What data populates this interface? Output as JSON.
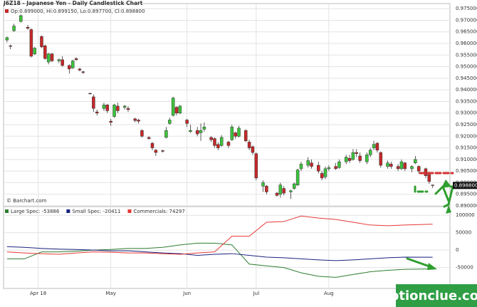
{
  "chart_data": [
    {
      "type": "candlestick",
      "title": "J6Z18 - Japanese Yen - Daily Candlestick Chart",
      "subtitle": "Op:0.899000, Hi:0.899150, Lo:0.897700, Cl:0.898800",
      "source": "© Barchart.com",
      "last_label": "0.898800",
      "up_color": "#3cc43c",
      "down_color": "#c62828",
      "xlim": [
        -1,
        128
      ],
      "ylim": [
        0.89,
        0.9772
      ],
      "yticks": [
        {
          "value": 0.975,
          "label": "0.975000"
        },
        {
          "value": 0.97,
          "label": "0.970000"
        },
        {
          "value": 0.965,
          "label": "0.965000"
        },
        {
          "value": 0.96,
          "label": "0.960000"
        },
        {
          "value": 0.955,
          "label": "0.955000"
        },
        {
          "value": 0.95,
          "label": "0.950000"
        },
        {
          "value": 0.945,
          "label": "0.945000"
        },
        {
          "value": 0.94,
          "label": "0.940000"
        },
        {
          "value": 0.935,
          "label": "0.935000"
        },
        {
          "value": 0.93,
          "label": "0.930000"
        },
        {
          "value": 0.925,
          "label": "0.925000"
        },
        {
          "value": 0.92,
          "label": "0.920000"
        },
        {
          "value": 0.915,
          "label": "0.915000"
        },
        {
          "value": 0.91,
          "label": "0.910000"
        },
        {
          "value": 0.905,
          "label": "0.905000"
        },
        {
          "value": 0.9,
          "label": "0.900000"
        },
        {
          "value": 0.895,
          "label": "0.895000"
        },
        {
          "value": 0.89,
          "label": "0.890000"
        }
      ],
      "grid": true,
      "candles": [
        {
          "x": 0,
          "open": 0.9615,
          "high": 0.963,
          "low": 0.9605,
          "close": 0.9625
        },
        {
          "x": 1,
          "open": 0.959,
          "high": 0.9595,
          "low": 0.9575,
          "close": 0.9588
        },
        {
          "x": 2,
          "open": 0.9655,
          "high": 0.9685,
          "low": 0.965,
          "close": 0.9675
        },
        {
          "x": 4,
          "open": 0.9695,
          "high": 0.9725,
          "low": 0.969,
          "close": 0.972
        },
        {
          "x": 6,
          "open": 0.967,
          "high": 0.968,
          "low": 0.966,
          "close": 0.9665
        },
        {
          "x": 7,
          "open": 0.966,
          "high": 0.9665,
          "low": 0.954,
          "close": 0.9545
        },
        {
          "x": 8,
          "open": 0.9555,
          "high": 0.9585,
          "low": 0.955,
          "close": 0.958
        },
        {
          "x": 10,
          "open": 0.963,
          "high": 0.9635,
          "low": 0.958,
          "close": 0.9585
        },
        {
          "x": 11,
          "open": 0.959,
          "high": 0.9595,
          "low": 0.953,
          "close": 0.9535
        },
        {
          "x": 12,
          "open": 0.952,
          "high": 0.956,
          "low": 0.951,
          "close": 0.9555
        },
        {
          "x": 13,
          "open": 0.9555,
          "high": 0.956,
          "low": 0.952,
          "close": 0.9525
        },
        {
          "x": 15,
          "open": 0.9525,
          "high": 0.9535,
          "low": 0.9515,
          "close": 0.953
        },
        {
          "x": 16,
          "open": 0.953,
          "high": 0.9545,
          "low": 0.95,
          "close": 0.9505
        },
        {
          "x": 18,
          "open": 0.9505,
          "high": 0.951,
          "low": 0.947,
          "close": 0.949
        },
        {
          "x": 19,
          "open": 0.9495,
          "high": 0.953,
          "low": 0.949,
          "close": 0.9525
        },
        {
          "x": 20,
          "open": 0.9535,
          "high": 0.954,
          "low": 0.9525,
          "close": 0.953
        },
        {
          "x": 21,
          "open": 0.949,
          "high": 0.9495,
          "low": 0.948,
          "close": 0.9485
        },
        {
          "x": 22,
          "open": 0.9478,
          "high": 0.9482,
          "low": 0.9468,
          "close": 0.9475
        },
        {
          "x": 24,
          "open": 0.9385,
          "high": 0.9388,
          "low": 0.938,
          "close": 0.9383
        },
        {
          "x": 25,
          "open": 0.937,
          "high": 0.938,
          "low": 0.9305,
          "close": 0.932
        },
        {
          "x": 26,
          "open": 0.9305,
          "high": 0.9315,
          "low": 0.929,
          "close": 0.93
        },
        {
          "x": 28,
          "open": 0.932,
          "high": 0.9345,
          "low": 0.931,
          "close": 0.9335
        },
        {
          "x": 29,
          "open": 0.9335,
          "high": 0.934,
          "low": 0.93,
          "close": 0.931
        },
        {
          "x": 30,
          "open": 0.9265,
          "high": 0.9275,
          "low": 0.9245,
          "close": 0.926
        },
        {
          "x": 31,
          "open": 0.9285,
          "high": 0.934,
          "low": 0.928,
          "close": 0.9335
        },
        {
          "x": 32,
          "open": 0.933,
          "high": 0.9345,
          "low": 0.93,
          "close": 0.931
        },
        {
          "x": 34,
          "open": 0.9325,
          "high": 0.9335,
          "low": 0.9315,
          "close": 0.933
        },
        {
          "x": 35,
          "open": 0.932,
          "high": 0.933,
          "low": 0.9305,
          "close": 0.9315
        },
        {
          "x": 37,
          "open": 0.9275,
          "high": 0.928,
          "low": 0.926,
          "close": 0.9268
        },
        {
          "x": 38,
          "open": 0.927,
          "high": 0.9275,
          "low": 0.9255,
          "close": 0.9265
        },
        {
          "x": 39,
          "open": 0.9225,
          "high": 0.923,
          "low": 0.9195,
          "close": 0.92
        },
        {
          "x": 41,
          "open": 0.9195,
          "high": 0.92,
          "low": 0.9185,
          "close": 0.919
        },
        {
          "x": 42,
          "open": 0.917,
          "high": 0.9175,
          "low": 0.914,
          "close": 0.915
        },
        {
          "x": 43,
          "open": 0.914,
          "high": 0.9145,
          "low": 0.9115,
          "close": 0.913
        },
        {
          "x": 45,
          "open": 0.9138,
          "high": 0.9142,
          "low": 0.913,
          "close": 0.9135
        },
        {
          "x": 46,
          "open": 0.9195,
          "high": 0.924,
          "low": 0.919,
          "close": 0.9225
        },
        {
          "x": 47,
          "open": 0.9255,
          "high": 0.928,
          "low": 0.925,
          "close": 0.927
        },
        {
          "x": 48,
          "open": 0.929,
          "high": 0.937,
          "low": 0.9285,
          "close": 0.9365
        },
        {
          "x": 49,
          "open": 0.9325,
          "high": 0.933,
          "low": 0.929,
          "close": 0.93
        },
        {
          "x": 50,
          "open": 0.93,
          "high": 0.9335,
          "low": 0.9295,
          "close": 0.933
        },
        {
          "x": 52,
          "open": 0.927,
          "high": 0.9275,
          "low": 0.924,
          "close": 0.9255
        },
        {
          "x": 53,
          "open": 0.922,
          "high": 0.925,
          "low": 0.9215,
          "close": 0.9225
        },
        {
          "x": 55,
          "open": 0.9225,
          "high": 0.924,
          "low": 0.92,
          "close": 0.921
        },
        {
          "x": 56,
          "open": 0.9215,
          "high": 0.9255,
          "low": 0.918,
          "close": 0.9225
        },
        {
          "x": 57,
          "open": 0.923,
          "high": 0.926,
          "low": 0.922,
          "close": 0.924
        },
        {
          "x": 59,
          "open": 0.9195,
          "high": 0.92,
          "low": 0.9175,
          "close": 0.9185
        },
        {
          "x": 60,
          "open": 0.919,
          "high": 0.9195,
          "low": 0.915,
          "close": 0.916
        },
        {
          "x": 61,
          "open": 0.9165,
          "high": 0.9175,
          "low": 0.914,
          "close": 0.915
        },
        {
          "x": 62,
          "open": 0.916,
          "high": 0.9205,
          "low": 0.9155,
          "close": 0.9195
        },
        {
          "x": 64,
          "open": 0.9175,
          "high": 0.918,
          "low": 0.915,
          "close": 0.916
        },
        {
          "x": 65,
          "open": 0.9185,
          "high": 0.925,
          "low": 0.918,
          "close": 0.924
        },
        {
          "x": 66,
          "open": 0.9215,
          "high": 0.922,
          "low": 0.919,
          "close": 0.92
        },
        {
          "x": 67,
          "open": 0.92,
          "high": 0.9245,
          "low": 0.9195,
          "close": 0.9235
        },
        {
          "x": 69,
          "open": 0.9225,
          "high": 0.923,
          "low": 0.9175,
          "close": 0.918
        },
        {
          "x": 70,
          "open": 0.9175,
          "high": 0.9185,
          "low": 0.914,
          "close": 0.915
        },
        {
          "x": 71,
          "open": 0.9155,
          "high": 0.916,
          "low": 0.912,
          "close": 0.913
        },
        {
          "x": 72,
          "open": 0.9125,
          "high": 0.913,
          "low": 0.901,
          "close": 0.902
        },
        {
          "x": 74,
          "open": 0.8985,
          "high": 0.901,
          "low": 0.896,
          "close": 0.9
        },
        {
          "x": 75,
          "open": 0.8985,
          "high": 0.899,
          "low": 0.895,
          "close": 0.896
        },
        {
          "x": 78,
          "open": 0.8955,
          "high": 0.896,
          "low": 0.894,
          "close": 0.8945
        },
        {
          "x": 79,
          "open": 0.895,
          "high": 0.9,
          "low": 0.8935,
          "close": 0.899
        },
        {
          "x": 80,
          "open": 0.8975,
          "high": 0.8985,
          "low": 0.8945,
          "close": 0.8955
        },
        {
          "x": 82,
          "open": 0.896,
          "high": 0.897,
          "low": 0.893,
          "close": 0.8965
        },
        {
          "x": 83,
          "open": 0.8975,
          "high": 0.9,
          "low": 0.897,
          "close": 0.8995
        },
        {
          "x": 84,
          "open": 0.899,
          "high": 0.906,
          "low": 0.8985,
          "close": 0.9055
        },
        {
          "x": 85,
          "open": 0.906,
          "high": 0.909,
          "low": 0.905,
          "close": 0.908
        },
        {
          "x": 87,
          "open": 0.9075,
          "high": 0.911,
          "low": 0.9065,
          "close": 0.9095
        },
        {
          "x": 88,
          "open": 0.9085,
          "high": 0.91,
          "low": 0.906,
          "close": 0.907
        },
        {
          "x": 90,
          "open": 0.9075,
          "high": 0.909,
          "low": 0.904,
          "close": 0.905
        },
        {
          "x": 91,
          "open": 0.904,
          "high": 0.905,
          "low": 0.901,
          "close": 0.902
        },
        {
          "x": 92,
          "open": 0.9025,
          "high": 0.907,
          "low": 0.9015,
          "close": 0.906
        },
        {
          "x": 93,
          "open": 0.906,
          "high": 0.9075,
          "low": 0.905,
          "close": 0.9065
        },
        {
          "x": 95,
          "open": 0.907,
          "high": 0.9085,
          "low": 0.9055,
          "close": 0.906
        },
        {
          "x": 96,
          "open": 0.9065,
          "high": 0.91,
          "low": 0.906,
          "close": 0.909
        },
        {
          "x": 98,
          "open": 0.909,
          "high": 0.912,
          "low": 0.908,
          "close": 0.911
        },
        {
          "x": 99,
          "open": 0.9105,
          "high": 0.912,
          "low": 0.9085,
          "close": 0.9095
        },
        {
          "x": 100,
          "open": 0.91,
          "high": 0.9145,
          "low": 0.9095,
          "close": 0.913
        },
        {
          "x": 101,
          "open": 0.913,
          "high": 0.9145,
          "low": 0.911,
          "close": 0.9125
        },
        {
          "x": 102,
          "open": 0.9115,
          "high": 0.913,
          "low": 0.9085,
          "close": 0.9095
        },
        {
          "x": 104,
          "open": 0.909,
          "high": 0.913,
          "low": 0.908,
          "close": 0.912
        },
        {
          "x": 105,
          "open": 0.912,
          "high": 0.915,
          "low": 0.911,
          "close": 0.914
        },
        {
          "x": 106,
          "open": 0.915,
          "high": 0.918,
          "low": 0.914,
          "close": 0.9165
        },
        {
          "x": 107,
          "open": 0.917,
          "high": 0.9175,
          "low": 0.913,
          "close": 0.914
        },
        {
          "x": 108,
          "open": 0.913,
          "high": 0.9135,
          "low": 0.9065,
          "close": 0.9075
        },
        {
          "x": 110,
          "open": 0.907,
          "high": 0.9095,
          "low": 0.906,
          "close": 0.9085
        },
        {
          "x": 111,
          "open": 0.908,
          "high": 0.909,
          "low": 0.906,
          "close": 0.907
        },
        {
          "x": 113,
          "open": 0.907,
          "high": 0.908,
          "low": 0.905,
          "close": 0.906
        },
        {
          "x": 114,
          "open": 0.906,
          "high": 0.91,
          "low": 0.9055,
          "close": 0.909
        },
        {
          "x": 115,
          "open": 0.9085,
          "high": 0.909,
          "low": 0.905,
          "close": 0.906
        },
        {
          "x": 117,
          "open": 0.906,
          "high": 0.9075,
          "low": 0.9045,
          "close": 0.907
        },
        {
          "x": 118,
          "open": 0.9085,
          "high": 0.9115,
          "low": 0.908,
          "close": 0.91
        },
        {
          "x": 119,
          "open": 0.907,
          "high": 0.9075,
          "low": 0.904,
          "close": 0.905
        },
        {
          "x": 121,
          "open": 0.906,
          "high": 0.9065,
          "low": 0.902,
          "close": 0.903
        },
        {
          "x": 122,
          "open": 0.9035,
          "high": 0.9045,
          "low": 0.8995,
          "close": 0.9005
        },
        {
          "x": 123,
          "open": 0.899,
          "high": 0.89915,
          "low": 0.8977,
          "close": 0.8988
        }
      ]
    },
    {
      "type": "line",
      "xlim": [
        -1,
        128
      ],
      "xticks": [
        {
          "value": 9,
          "label": "Apr 18"
        },
        {
          "value": 30,
          "label": "May"
        },
        {
          "value": 52,
          "label": "Jun"
        },
        {
          "value": 72,
          "label": "Jul"
        },
        {
          "value": 93,
          "label": "Aug"
        }
      ],
      "ylim": [
        -110000,
        125000
      ],
      "yticks": [
        100000,
        50000,
        0,
        -50000
      ],
      "grid": true,
      "x": [
        0,
        5,
        10,
        15,
        20,
        25,
        30,
        35,
        40,
        45,
        50,
        55,
        60,
        65,
        70,
        75,
        80,
        85,
        90,
        95,
        100,
        105,
        110,
        115,
        123
      ],
      "series": [
        {
          "name": "Large Spec: -53886",
          "color": "#2e7d32",
          "values": [
            -25000,
            -25000,
            -5000,
            -5000,
            -3000,
            0,
            2000,
            5000,
            5000,
            8000,
            15000,
            20000,
            20000,
            15000,
            -40000,
            -45000,
            -50000,
            -65000,
            -75000,
            -78000,
            -70000,
            -62000,
            -58000,
            -55000,
            -53886
          ]
        },
        {
          "name": "Small Spec: -20411",
          "color": "#1a237e",
          "values": [
            10000,
            8000,
            5000,
            3000,
            2000,
            0,
            -2000,
            -2000,
            -5000,
            -8000,
            -10000,
            -15000,
            -12000,
            -10000,
            -15000,
            -20000,
            -22000,
            -25000,
            -28000,
            -30000,
            -28000,
            -25000,
            -22000,
            -20000,
            -20411
          ]
        },
        {
          "name": "Commercials: 74297",
          "color": "#e53935",
          "values": [
            -5000,
            -8000,
            -10000,
            -12000,
            -8000,
            -5000,
            -6000,
            -8000,
            -8000,
            -10000,
            -12000,
            -8000,
            -5000,
            40000,
            40000,
            80000,
            82000,
            98000,
            92000,
            88000,
            80000,
            72000,
            70000,
            72000,
            74297
          ]
        }
      ]
    }
  ],
  "watermark": "optionclue.com"
}
